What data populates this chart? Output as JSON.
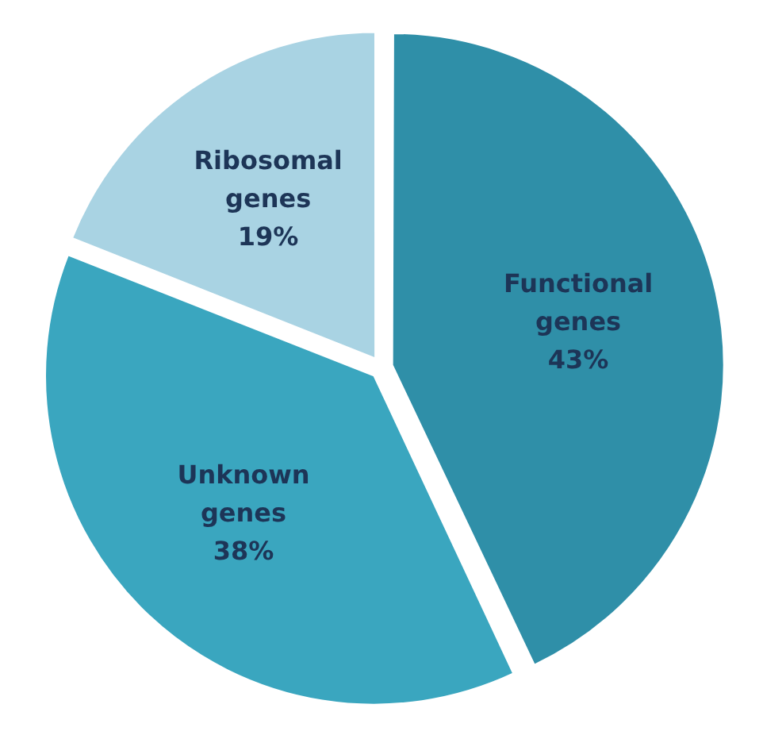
{
  "chart_data": {
    "type": "pie",
    "categories": [
      "Functional genes",
      "Unknown genes",
      "Ribosomal genes"
    ],
    "values": [
      43,
      38,
      19
    ],
    "colors": [
      "#2f8fa8",
      "#3aa6bf",
      "#a9d3e3"
    ],
    "data_labels": true,
    "value_labels": [
      "43%",
      "38%",
      "19%"
    ]
  }
}
